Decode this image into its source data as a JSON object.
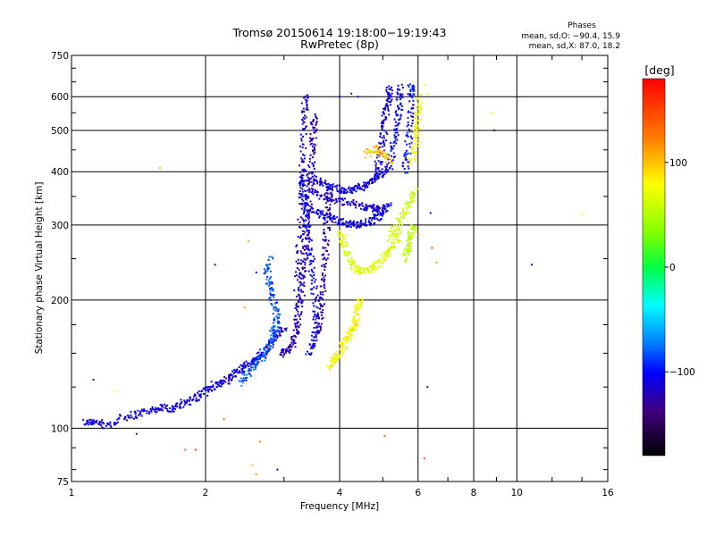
{
  "chart_data": {
    "type": "scatter",
    "title": "Tromsø 20150614 19:18:00−19:19:43",
    "subtitle": "RwPretec (8p)",
    "xlabel": "Frequency [MHz]",
    "ylabel": "Stationary phase Virtual Height [km]",
    "x_scale": "log",
    "y_scale": "log",
    "xlim": [
      1,
      16
    ],
    "ylim": [
      75,
      750
    ],
    "x_ticks": [
      1,
      2,
      4,
      6,
      8,
      10,
      16
    ],
    "x_tick_labels": [
      "1",
      "2",
      "4",
      "6",
      "8",
      "10",
      "16"
    ],
    "y_ticks": [
      75,
      100,
      200,
      300,
      400,
      500,
      600,
      750
    ],
    "y_tick_labels": [
      "75",
      "100",
      "200",
      "300",
      "400",
      "500",
      "600",
      "750"
    ],
    "grid": true,
    "stats": {
      "heading": "Phases",
      "line_o": "mean, sd,O: −90.4, 15.9",
      "line_x": "mean, sd,X:  87.0, 18.2"
    },
    "colorbar": {
      "label": "[deg]",
      "range": [
        -180,
        180
      ],
      "ticks": [
        100,
        0,
        -100
      ],
      "tick_labels": [
        "100",
        "0",
        "−100"
      ]
    },
    "traces": [
      {
        "points": [
          [
            1.07,
            103
          ],
          [
            1.12,
            104
          ],
          [
            1.2,
            101
          ],
          [
            1.3,
            106
          ],
          [
            1.4,
            108
          ],
          [
            1.5,
            110
          ],
          [
            1.6,
            112
          ],
          [
            1.7,
            111
          ],
          [
            1.8,
            115
          ],
          [
            1.9,
            118
          ],
          [
            2.0,
            122
          ],
          [
            2.1,
            127
          ],
          [
            2.2,
            128
          ],
          [
            2.3,
            133
          ],
          [
            2.4,
            138
          ],
          [
            2.5,
            141
          ],
          [
            2.6,
            145
          ],
          [
            2.7,
            150
          ],
          [
            2.8,
            157
          ],
          [
            2.9,
            166
          ],
          [
            3.0,
            174
          ]
        ],
        "phase": -110
      },
      {
        "points": [
          [
            2.4,
            128
          ],
          [
            2.5,
            136
          ],
          [
            2.6,
            142
          ],
          [
            2.7,
            148
          ],
          [
            2.8,
            158
          ],
          [
            2.85,
            170
          ],
          [
            2.9,
            180
          ],
          [
            2.85,
            195
          ],
          [
            2.8,
            210
          ],
          [
            2.75,
            230
          ],
          [
            2.8,
            250
          ]
        ],
        "phase": -80
      },
      {
        "points": [
          [
            2.95,
            150
          ],
          [
            3.05,
            153
          ],
          [
            3.15,
            158
          ],
          [
            3.2,
            170
          ],
          [
            3.25,
            190
          ],
          [
            3.3,
            215
          ],
          [
            3.32,
            240
          ],
          [
            3.35,
            262
          ],
          [
            3.38,
            300
          ],
          [
            3.42,
            350
          ],
          [
            3.45,
            400
          ],
          [
            3.47,
            455
          ],
          [
            3.5,
            500
          ],
          [
            3.5,
            540
          ]
        ],
        "phase": -125
      },
      {
        "points": [
          [
            3.2,
            170
          ],
          [
            3.22,
            220
          ],
          [
            3.25,
            270
          ],
          [
            3.28,
            330
          ],
          [
            3.3,
            400
          ],
          [
            3.32,
            480
          ],
          [
            3.34,
            560
          ],
          [
            3.36,
            610
          ]
        ],
        "phase": -115
      },
      {
        "points": [
          [
            3.55,
            165
          ],
          [
            3.6,
            180
          ],
          [
            3.65,
            200
          ],
          [
            3.7,
            230
          ],
          [
            3.72,
            260
          ],
          [
            3.75,
            300
          ],
          [
            3.78,
            340
          ],
          [
            3.8,
            370
          ]
        ],
        "phase": -130
      },
      {
        "points": [
          [
            3.4,
            150
          ],
          [
            3.5,
            160
          ],
          [
            3.55,
            185
          ],
          [
            3.5,
            215
          ],
          [
            3.45,
            250
          ],
          [
            3.4,
            290
          ],
          [
            3.35,
            330
          ],
          [
            3.3,
            370
          ],
          [
            3.3,
            400
          ]
        ],
        "phase": -105
      },
      {
        "points": [
          [
            3.4,
            390
          ],
          [
            3.6,
            378
          ],
          [
            3.8,
            370
          ],
          [
            4.0,
            364
          ],
          [
            4.2,
            362
          ],
          [
            4.4,
            365
          ],
          [
            4.6,
            372
          ],
          [
            4.8,
            385
          ],
          [
            5.0,
            398
          ],
          [
            5.2,
            410
          ]
        ],
        "phase": -110
      },
      {
        "points": [
          [
            3.4,
            330
          ],
          [
            3.6,
            320
          ],
          [
            3.8,
            312
          ],
          [
            4.0,
            306
          ],
          [
            4.2,
            302
          ],
          [
            4.4,
            300
          ],
          [
            4.6,
            302
          ],
          [
            4.8,
            310
          ],
          [
            5.0,
            322
          ],
          [
            5.2,
            340
          ]
        ],
        "phase": -108
      },
      {
        "points": [
          [
            3.45,
            360
          ],
          [
            3.7,
            350
          ],
          [
            4.0,
            342
          ],
          [
            4.3,
            336
          ],
          [
            4.6,
            330
          ],
          [
            4.8,
            328
          ],
          [
            5.0,
            330
          ]
        ],
        "phase": -115
      },
      {
        "points": [
          [
            4.8,
            380
          ],
          [
            4.9,
            420
          ],
          [
            5.0,
            470
          ],
          [
            5.05,
            520
          ],
          [
            5.1,
            560
          ],
          [
            5.15,
            600
          ],
          [
            5.2,
            640
          ]
        ],
        "phase": -110
      },
      {
        "points": [
          [
            5.2,
            420
          ],
          [
            5.3,
            470
          ],
          [
            5.4,
            520
          ],
          [
            5.45,
            580
          ],
          [
            5.5,
            640
          ]
        ],
        "phase": -105
      },
      {
        "points": [
          [
            5.6,
            400
          ],
          [
            5.7,
            450
          ],
          [
            5.75,
            520
          ],
          [
            5.78,
            600
          ],
          [
            5.8,
            640
          ]
        ],
        "phase": -100
      },
      {
        "points": [
          [
            3.8,
            140
          ],
          [
            3.9,
            145
          ],
          [
            4.0,
            150
          ],
          [
            4.1,
            158
          ],
          [
            4.2,
            165
          ],
          [
            4.3,
            172
          ],
          [
            4.35,
            180
          ],
          [
            4.4,
            192
          ],
          [
            4.45,
            200
          ]
        ],
        "phase": 100
      },
      {
        "points": [
          [
            4.0,
            290
          ],
          [
            4.1,
            270
          ],
          [
            4.2,
            252
          ],
          [
            4.35,
            238
          ],
          [
            4.5,
            233
          ],
          [
            4.7,
            236
          ],
          [
            4.9,
            244
          ],
          [
            5.1,
            255
          ],
          [
            5.3,
            270
          ],
          [
            5.5,
            290
          ]
        ],
        "phase": 80
      },
      {
        "points": [
          [
            5.2,
            280
          ],
          [
            5.4,
            300
          ],
          [
            5.6,
            320
          ],
          [
            5.8,
            342
          ],
          [
            5.9,
            360
          ]
        ],
        "phase": 70
      },
      {
        "points": [
          [
            5.6,
            250
          ],
          [
            5.7,
            265
          ],
          [
            5.8,
            285
          ],
          [
            5.9,
            300
          ]
        ],
        "phase": 60
      },
      {
        "points": [
          [
            5.8,
            420
          ],
          [
            5.9,
            460
          ],
          [
            5.95,
            500
          ],
          [
            6.0,
            550
          ],
          [
            6.05,
            600
          ]
        ],
        "phase": 95
      },
      {
        "points": [
          [
            4.6,
            440
          ],
          [
            4.8,
            455
          ],
          [
            5.0,
            440
          ],
          [
            5.2,
            420
          ]
        ],
        "phase": 120
      }
    ],
    "scatter_points": [
      {
        "x": 1.58,
        "y": 408,
        "phase": 40
      },
      {
        "x": 2.45,
        "y": 192,
        "phase": 125
      },
      {
        "x": 2.1,
        "y": 242,
        "phase": -100
      },
      {
        "x": 2.5,
        "y": 275,
        "phase": 130
      },
      {
        "x": 2.6,
        "y": 232,
        "phase": -95
      },
      {
        "x": 1.12,
        "y": 130,
        "phase": -105
      },
      {
        "x": 1.25,
        "y": 122,
        "phase": 100
      },
      {
        "x": 1.4,
        "y": 97,
        "phase": -135
      },
      {
        "x": 1.8,
        "y": 89,
        "phase": 150
      },
      {
        "x": 1.9,
        "y": 89,
        "phase": 160
      },
      {
        "x": 2.2,
        "y": 105,
        "phase": 150
      },
      {
        "x": 2.55,
        "y": 82,
        "phase": 120
      },
      {
        "x": 2.6,
        "y": 78,
        "phase": 130
      },
      {
        "x": 2.65,
        "y": 93,
        "phase": 140
      },
      {
        "x": 2.9,
        "y": 80,
        "phase": -120
      },
      {
        "x": 2.65,
        "y": 153,
        "phase": -90
      },
      {
        "x": 4.0,
        "y": 600,
        "phase": -110
      },
      {
        "x": 4.25,
        "y": 610,
        "phase": -125
      },
      {
        "x": 4.4,
        "y": 600,
        "phase": -115
      },
      {
        "x": 5.05,
        "y": 96,
        "phase": 150
      },
      {
        "x": 6.0,
        "y": 285,
        "phase": 150
      },
      {
        "x": 6.2,
        "y": 640,
        "phase": 90
      },
      {
        "x": 6.3,
        "y": 610,
        "phase": 100
      },
      {
        "x": 6.3,
        "y": 125,
        "phase": -120
      },
      {
        "x": 6.4,
        "y": 320,
        "phase": -100
      },
      {
        "x": 6.45,
        "y": 265,
        "phase": 160
      },
      {
        "x": 6.6,
        "y": 245,
        "phase": 130
      },
      {
        "x": 6.2,
        "y": 85,
        "phase": 150
      },
      {
        "x": 8.8,
        "y": 550,
        "phase": 100
      },
      {
        "x": 8.9,
        "y": 500,
        "phase": -140
      },
      {
        "x": 10.8,
        "y": 242,
        "phase": -105
      },
      {
        "x": 14.0,
        "y": 318,
        "phase": 100
      }
    ]
  }
}
